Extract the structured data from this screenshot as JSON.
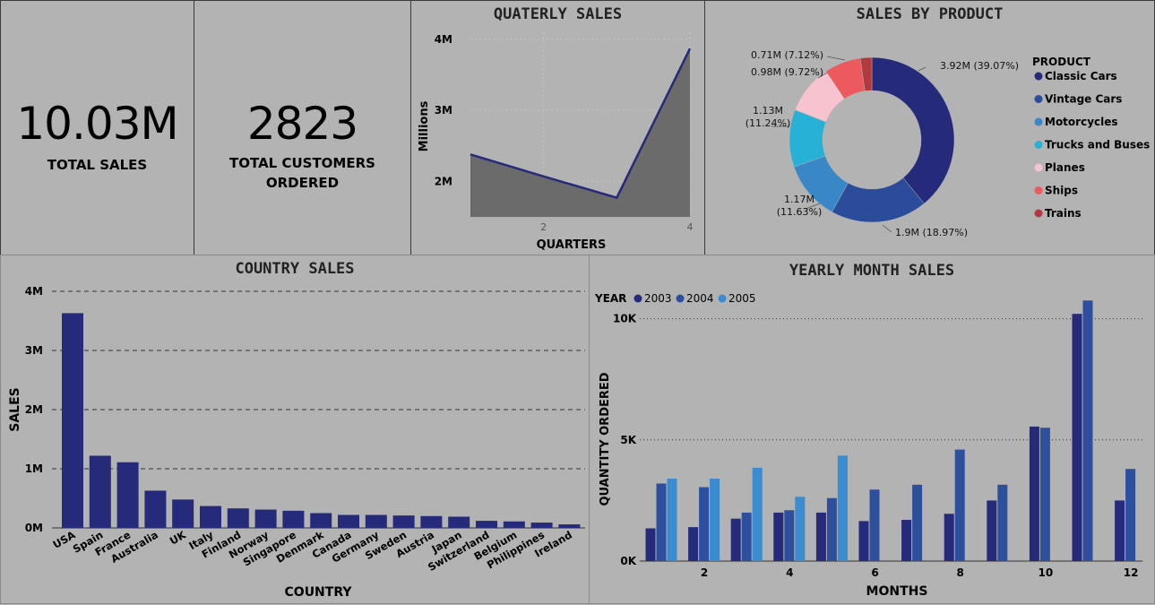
{
  "kpis": {
    "total_sales": {
      "value": "10.03M",
      "label": "TOTAL SALES"
    },
    "total_customers": {
      "value": "2823",
      "label_line1": "TOTAL CUSTOMERS",
      "label_line2": "ORDERED"
    }
  },
  "colors": {
    "navy": "#262a7a",
    "area_fill": "#6b6b6b",
    "y2003": "#262a7a",
    "y2004": "#2e4e9e",
    "y2005": "#3a8bcf"
  },
  "chart_data": [
    {
      "type": "area",
      "title": "QUATERLY SALES",
      "xlabel": "QUARTERS",
      "ylabel": "Millions",
      "x": [
        1,
        2,
        3,
        4
      ],
      "values": [
        2.38,
        2.07,
        1.77,
        3.87
      ],
      "xticks": [
        2,
        4
      ],
      "xtick_labels": [
        "2",
        "4"
      ],
      "yticks": [
        2,
        3,
        4
      ],
      "ytick_labels": [
        "2M",
        "3M",
        "4M"
      ],
      "ylim": [
        1.5,
        4.1
      ],
      "xlim": [
        1,
        4
      ]
    },
    {
      "type": "pie",
      "title": "SALES BY PRODUCT",
      "legend_title": "PRODUCT",
      "legend_position": "right",
      "slices": [
        {
          "name": "Classic Cars",
          "value": 39.07,
          "label": "3.92M (39.07%)",
          "color": "#262a7a"
        },
        {
          "name": "Vintage Cars",
          "value": 18.97,
          "label": "1.9M (18.97%)",
          "color": "#2a4c9b"
        },
        {
          "name": "Motorcycles",
          "value": 11.63,
          "label_line1": "1.17M",
          "label_line2": "(11.63%)",
          "color": "#3a87c8"
        },
        {
          "name": "Trucks and Buses",
          "value": 11.24,
          "label_line1": "1.13M",
          "label_line2": "(11.24%)",
          "color": "#27b1d6"
        },
        {
          "name": "Planes",
          "value": 9.72,
          "label": "0.98M (9.72%)",
          "color": "#f7c3cf"
        },
        {
          "name": "Ships",
          "value": 7.12,
          "label": "0.71M (7.12%)",
          "color": "#ec5a5e"
        },
        {
          "name": "Trains",
          "value": 2.25,
          "label": "",
          "color": "#b03a3e"
        }
      ]
    },
    {
      "type": "bar",
      "title": "COUNTRY SALES",
      "xlabel": "COUNTRY",
      "ylabel": "SALES",
      "categories": [
        "USA",
        "Spain",
        "France",
        "Australia",
        "UK",
        "Italy",
        "Finland",
        "Norway",
        "Singapore",
        "Denmark",
        "Canada",
        "Germany",
        "Sweden",
        "Austria",
        "Japan",
        "Switzerland",
        "Belgium",
        "Philippines",
        "Ireland"
      ],
      "values": [
        3.63,
        1.22,
        1.11,
        0.63,
        0.48,
        0.37,
        0.33,
        0.31,
        0.29,
        0.25,
        0.22,
        0.22,
        0.21,
        0.2,
        0.19,
        0.12,
        0.11,
        0.09,
        0.06
      ],
      "yticks": [
        0,
        1,
        2,
        3,
        4
      ],
      "ytick_labels": [
        "0M",
        "1M",
        "2M",
        "3M",
        "4M"
      ],
      "ylim": [
        0,
        4
      ],
      "grid": "dashed"
    },
    {
      "type": "bar",
      "title": "YEARLY MONTH SALES",
      "xlabel": "MONTHS",
      "ylabel": "QUANTITY ORDERED",
      "legend_title": "YEAR",
      "legend_position": "top-left",
      "categories": [
        1,
        2,
        3,
        4,
        5,
        6,
        7,
        8,
        9,
        10,
        11,
        12
      ],
      "xticks": [
        2,
        4,
        6,
        8,
        10,
        12
      ],
      "xtick_labels": [
        "2",
        "4",
        "6",
        "8",
        "10",
        "12"
      ],
      "yticks": [
        0,
        5000,
        10000
      ],
      "ytick_labels": [
        "0K",
        "5K",
        "10K"
      ],
      "ylim": [
        0,
        11500
      ],
      "grid": "dotted",
      "series": [
        {
          "name": "2003",
          "values": [
            1350,
            1400,
            1750,
            2000,
            2000,
            1650,
            1700,
            1950,
            2500,
            5550,
            10200,
            2500
          ]
        },
        {
          "name": "2004",
          "values": [
            3200,
            3050,
            2000,
            2100,
            2600,
            2950,
            3150,
            4600,
            3150,
            5500,
            10750,
            3800
          ]
        },
        {
          "name": "2005",
          "values": [
            3400,
            3400,
            3850,
            2650,
            4350,
            null,
            null,
            null,
            null,
            null,
            null,
            null
          ]
        }
      ]
    }
  ]
}
